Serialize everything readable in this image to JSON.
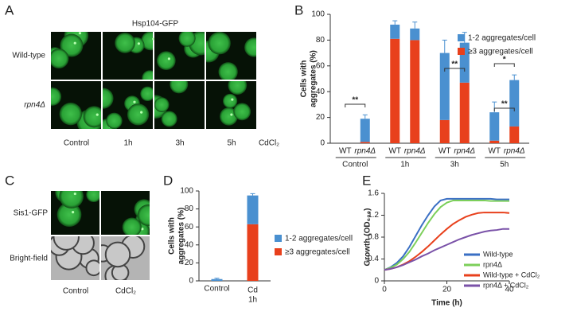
{
  "panel_labels": [
    "A",
    "B",
    "C",
    "D",
    "E"
  ],
  "micrographs_A": {
    "title": "Hsp104-GFP",
    "rows": [
      "Wild-type",
      "rpn4Δ"
    ],
    "columns": [
      "Control",
      "1h",
      "3h",
      "5h"
    ],
    "treatment": "CdCl₂"
  },
  "micrographs_C": {
    "rows": [
      "Sis1-GFP",
      "Bright-field"
    ],
    "columns": [
      "Control",
      "CdCl₂"
    ]
  },
  "chart_data": [
    {
      "type": "bar",
      "stacked": true,
      "ylabel": [
        "Cells with",
        "aggregates (%)"
      ],
      "categories": [
        "WT",
        "rpn4Δ",
        "WT",
        "rpn4Δ",
        "WT",
        "rpn4Δ",
        "WT",
        "rpn4Δ"
      ],
      "groups": [
        "Control",
        "1h",
        "3h",
        "5h"
      ],
      "series": [
        {
          "name": "1-2 aggregates/cell",
          "color": "#4a90d0",
          "values": [
            0,
            18,
            11,
            9,
            52,
            31,
            22,
            36
          ],
          "errors": [
            null,
            3,
            3,
            5,
            10,
            8,
            8,
            4
          ]
        },
        {
          "name": "≥3 aggregates/cell",
          "color": "#e8401c",
          "values": [
            0,
            1,
            81,
            80,
            18,
            47,
            2,
            13
          ]
        }
      ],
      "ylim": [
        0,
        100
      ],
      "yticks": [
        0,
        20,
        40,
        60,
        80,
        100
      ],
      "annotations": [
        "**",
        "**",
        "*",
        "**"
      ],
      "legend": "upper right"
    },
    {
      "type": "bar",
      "stacked": true,
      "ylabel": [
        "Cells with",
        "aggregates (%)"
      ],
      "categories": [
        "Control",
        [
          "Cd",
          "1h"
        ]
      ],
      "series": [
        {
          "name": "1-2 aggregates/cell",
          "color": "#4a90d0",
          "values": [
            2,
            32
          ],
          "errors": [
            1,
            2
          ]
        },
        {
          "name": "≥3 aggregates/cell",
          "color": "#e8401c",
          "values": [
            0,
            63
          ],
          "errors": [
            null,
            6
          ]
        }
      ],
      "ylim": [
        0,
        100
      ],
      "yticks": [
        0,
        20,
        40,
        60,
        80,
        100
      ],
      "legend": "center right"
    },
    {
      "type": "line",
      "xlabel": "Time (h)",
      "ylabel": "Growth (OD₆₀₀)",
      "x": [
        0,
        2,
        4,
        6,
        8,
        10,
        12,
        14,
        16,
        18,
        20,
        22,
        24,
        26,
        28,
        30,
        32,
        34,
        36,
        38,
        40
      ],
      "series": [
        {
          "name": "Wild-type",
          "color": "#3a6fc4",
          "values": [
            0.2,
            0.25,
            0.33,
            0.45,
            0.62,
            0.82,
            1.02,
            1.2,
            1.36,
            1.47,
            1.5,
            1.5,
            1.5,
            1.5,
            1.5,
            1.5,
            1.5,
            1.5,
            1.49,
            1.49,
            1.49
          ]
        },
        {
          "name": "rpn4Δ",
          "color": "#7ccf5a",
          "values": [
            0.2,
            0.24,
            0.3,
            0.4,
            0.53,
            0.7,
            0.88,
            1.06,
            1.22,
            1.35,
            1.43,
            1.47,
            1.47,
            1.47,
            1.47,
            1.47,
            1.47,
            1.46,
            1.46,
            1.46,
            1.46
          ]
        },
        {
          "name": "Wild-type + CdCl₂",
          "color": "#e8401c",
          "values": [
            0.2,
            0.22,
            0.25,
            0.3,
            0.36,
            0.44,
            0.53,
            0.63,
            0.74,
            0.85,
            0.95,
            1.04,
            1.11,
            1.17,
            1.21,
            1.24,
            1.25,
            1.25,
            1.25,
            1.25,
            1.24
          ]
        },
        {
          "name": "rpn4Δ + CdCl₂",
          "color": "#7a52a8",
          "values": [
            0.2,
            0.22,
            0.25,
            0.29,
            0.34,
            0.39,
            0.45,
            0.5,
            0.56,
            0.61,
            0.66,
            0.71,
            0.76,
            0.8,
            0.84,
            0.87,
            0.9,
            0.92,
            0.93,
            0.95,
            0.95
          ]
        }
      ],
      "xlim": [
        0,
        40
      ],
      "ylim": [
        0,
        1.6
      ],
      "xticks": [
        0,
        20,
        40
      ],
      "yticks": [
        0,
        0.4,
        0.8,
        1.2,
        1.6
      ],
      "legend": "lower right"
    }
  ]
}
